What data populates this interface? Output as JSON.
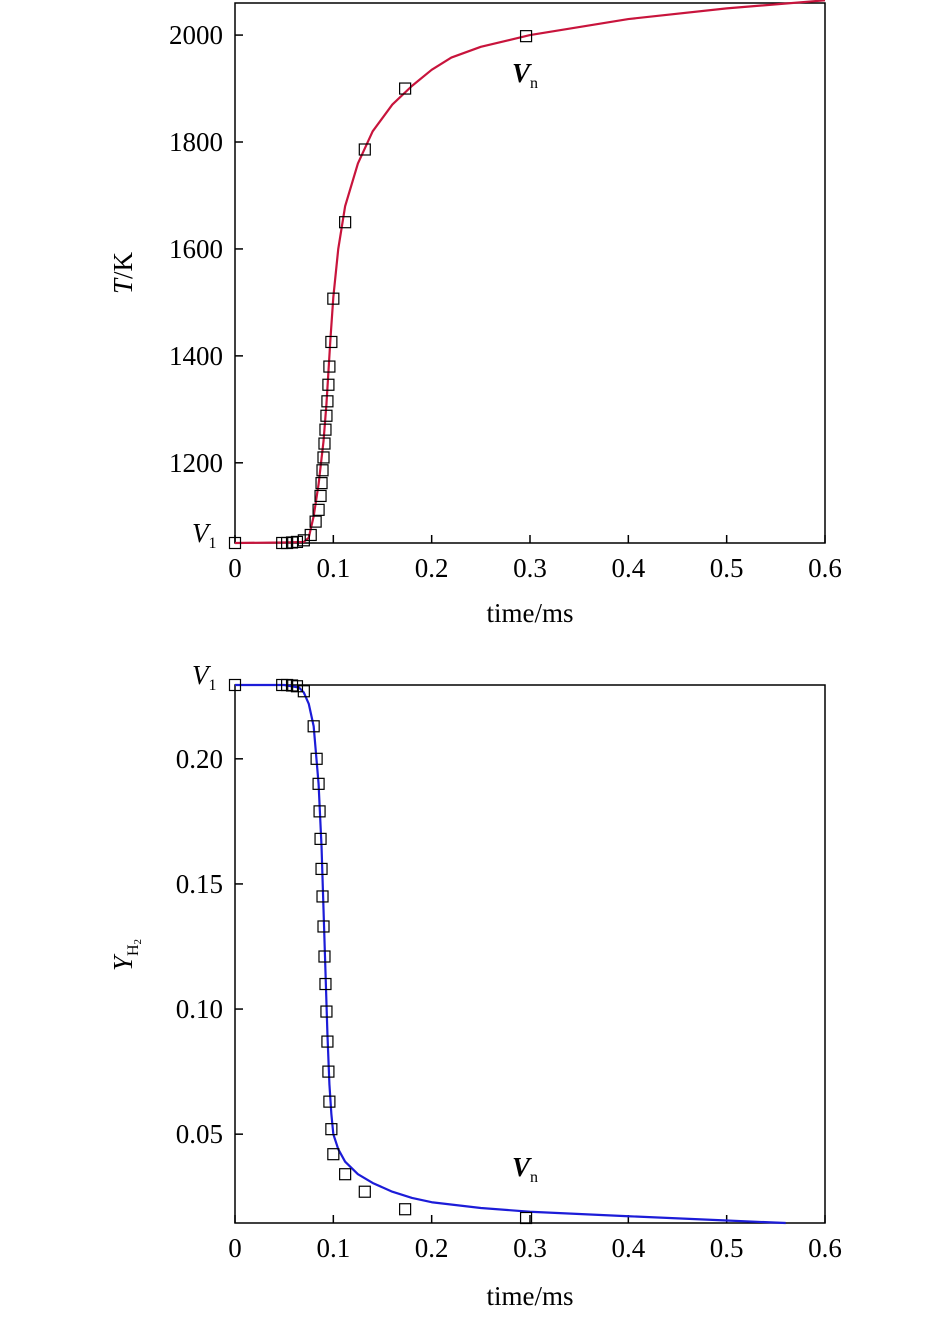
{
  "chart_data": [
    {
      "type": "line",
      "title": "",
      "xlabel": "time/ms",
      "ylabel": "T/K",
      "ylabel_italic_part": "T",
      "ylabel_rest": "/K",
      "xlim": [
        0,
        0.6
      ],
      "ylim": [
        1050,
        2060
      ],
      "xticks": [
        0,
        0.1,
        0.2,
        0.3,
        0.4,
        0.5,
        0.6
      ],
      "xtick_labels": [
        "0",
        "0.1",
        "0.2",
        "0.3",
        "0.4",
        "0.5",
        "0.6"
      ],
      "yticks": [
        1200,
        1400,
        1600,
        1800,
        2000
      ],
      "ytick_labels": [
        "1200",
        "1400",
        "1600",
        "1800",
        "2000"
      ],
      "curve_color": "#c8143c",
      "marker_color": "#000000",
      "annotations": {
        "start": {
          "label": "V",
          "sub": "1"
        },
        "end": {
          "label": "V",
          "sub": "n"
        }
      },
      "series": [
        {
          "type": "line",
          "x": [
            0.0,
            0.05,
            0.07,
            0.075,
            0.08,
            0.085,
            0.09,
            0.093,
            0.095,
            0.097,
            0.1,
            0.105,
            0.112,
            0.125,
            0.14,
            0.16,
            0.18,
            0.2,
            0.22,
            0.25,
            0.3,
            0.4,
            0.5,
            0.6
          ],
          "y": [
            1050,
            1051,
            1052,
            1060,
            1100,
            1160,
            1240,
            1310,
            1370,
            1430,
            1510,
            1600,
            1680,
            1760,
            1820,
            1870,
            1905,
            1935,
            1958,
            1978,
            2000,
            2030,
            2050,
            2065
          ]
        },
        {
          "type": "scatter",
          "marker": "square-open",
          "x": [
            0.0,
            0.048,
            0.053,
            0.058,
            0.063,
            0.07,
            0.077,
            0.082,
            0.085,
            0.087,
            0.088,
            0.089,
            0.09,
            0.091,
            0.092,
            0.093,
            0.094,
            0.095,
            0.096,
            0.098,
            0.1,
            0.112,
            0.132,
            0.173,
            0.296
          ],
          "y": [
            1050,
            1050,
            1050,
            1051,
            1052,
            1055,
            1065,
            1090,
            1112,
            1138,
            1162,
            1186,
            1210,
            1236,
            1262,
            1288,
            1315,
            1346,
            1380,
            1426,
            1507,
            1650,
            1786,
            1900,
            1998
          ]
        }
      ]
    },
    {
      "type": "line",
      "title": "",
      "xlabel": "time/ms",
      "ylabel": "Y_H2",
      "ylabel_main": "Y",
      "ylabel_sub": "H",
      "ylabel_subsub": "2",
      "xlim": [
        0,
        0.6
      ],
      "ylim": [
        0.0145,
        0.2295
      ],
      "xticks": [
        0,
        0.1,
        0.2,
        0.3,
        0.4,
        0.5,
        0.6
      ],
      "xtick_labels": [
        "0",
        "0.1",
        "0.2",
        "0.3",
        "0.4",
        "0.5",
        "0.6"
      ],
      "yticks": [
        0.05,
        0.1,
        0.15,
        0.2
      ],
      "ytick_labels": [
        "0.05",
        "0.10",
        "0.15",
        "0.20"
      ],
      "curve_color": "#1c1cd8",
      "marker_color": "#000000",
      "annotations": {
        "start": {
          "label": "V",
          "sub": "1"
        },
        "end": {
          "label": "V",
          "sub": "n"
        }
      },
      "series": [
        {
          "type": "line",
          "x": [
            0.0,
            0.05,
            0.065,
            0.07,
            0.075,
            0.08,
            0.085,
            0.088,
            0.09,
            0.092,
            0.094,
            0.096,
            0.098,
            0.1,
            0.105,
            0.112,
            0.125,
            0.14,
            0.16,
            0.18,
            0.2,
            0.25,
            0.3,
            0.4,
            0.5,
            0.56
          ],
          "y": [
            0.2295,
            0.2295,
            0.2285,
            0.2265,
            0.222,
            0.213,
            0.19,
            0.165,
            0.14,
            0.115,
            0.09,
            0.07,
            0.058,
            0.05,
            0.044,
            0.039,
            0.034,
            0.0305,
            0.027,
            0.0245,
            0.0228,
            0.0205,
            0.019,
            0.0172,
            0.0155,
            0.0145
          ]
        },
        {
          "type": "scatter",
          "marker": "square-open",
          "x": [
            0.0,
            0.048,
            0.053,
            0.058,
            0.063,
            0.07,
            0.08,
            0.083,
            0.085,
            0.086,
            0.087,
            0.088,
            0.089,
            0.09,
            0.091,
            0.092,
            0.093,
            0.094,
            0.095,
            0.096,
            0.098,
            0.1,
            0.112,
            0.132,
            0.173,
            0.296
          ],
          "y": [
            0.2295,
            0.2295,
            0.2295,
            0.2293,
            0.229,
            0.227,
            0.213,
            0.2,
            0.19,
            0.179,
            0.168,
            0.156,
            0.145,
            0.133,
            0.121,
            0.11,
            0.099,
            0.087,
            0.075,
            0.063,
            0.052,
            0.042,
            0.034,
            0.027,
            0.02,
            0.0165
          ]
        }
      ]
    }
  ]
}
